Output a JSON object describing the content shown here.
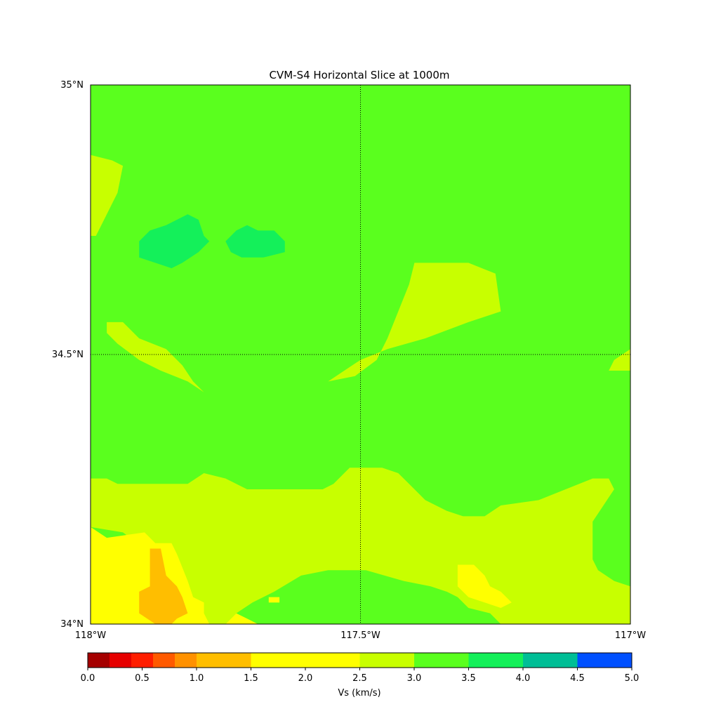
{
  "chart_data": {
    "type": "heatmap",
    "title": "CVM-S4 Horizontal Slice at 1000m",
    "x_ticks": [
      "118°W",
      "117.5°W",
      "117°W"
    ],
    "y_ticks": [
      "35°N",
      "34.5°N",
      "34°N"
    ],
    "xlim": [
      -118,
      -117
    ],
    "ylim": [
      34,
      35
    ],
    "gridlines": {
      "lon": [
        -117.5
      ],
      "lat": [
        34.5
      ],
      "style": "dotted"
    },
    "background_vs": 3.25,
    "colorbar": {
      "label": "Vs (km/s)",
      "ticks": [
        "0.0",
        "0.5",
        "1.0",
        "1.5",
        "2.0",
        "2.5",
        "3.0",
        "3.5",
        "4.0",
        "4.5",
        "5.0"
      ],
      "range": [
        0,
        5
      ],
      "bins": [
        {
          "from": 0.0,
          "to": 0.2,
          "color": "#a50000"
        },
        {
          "from": 0.2,
          "to": 0.4,
          "color": "#e60000"
        },
        {
          "from": 0.4,
          "to": 0.6,
          "color": "#ff1e00"
        },
        {
          "from": 0.6,
          "to": 0.8,
          "color": "#ff5a00"
        },
        {
          "from": 0.8,
          "to": 1.0,
          "color": "#ff9100"
        },
        {
          "from": 1.0,
          "to": 1.5,
          "color": "#ffbe00"
        },
        {
          "from": 1.5,
          "to": 2.5,
          "color": "#ffff00"
        },
        {
          "from": 2.5,
          "to": 3.0,
          "color": "#c8ff00"
        },
        {
          "from": 3.0,
          "to": 3.5,
          "color": "#5aff1e"
        },
        {
          "from": 3.5,
          "to": 4.0,
          "color": "#14f05a"
        },
        {
          "from": 4.0,
          "to": 4.5,
          "color": "#00be96"
        },
        {
          "from": 4.5,
          "to": 5.0,
          "color": "#0050ff"
        }
      ]
    },
    "regions": [
      {
        "vs": 2.75,
        "points": [
          [
            -118,
            34.87
          ],
          [
            -117.96,
            34.86
          ],
          [
            -117.94,
            34.85
          ],
          [
            -117.95,
            34.8
          ],
          [
            -117.97,
            34.76
          ],
          [
            -117.99,
            34.72
          ],
          [
            -118,
            34.72
          ]
        ]
      },
      {
        "vs": 3.75,
        "points": [
          [
            -117.91,
            34.71
          ],
          [
            -117.89,
            34.73
          ],
          [
            -117.86,
            34.74
          ],
          [
            -117.82,
            34.76
          ],
          [
            -117.8,
            34.75
          ],
          [
            -117.79,
            34.72
          ],
          [
            -117.78,
            34.71
          ],
          [
            -117.8,
            34.69
          ],
          [
            -117.83,
            34.67
          ],
          [
            -117.85,
            34.66
          ],
          [
            -117.88,
            34.67
          ],
          [
            -117.91,
            34.68
          ]
        ]
      },
      {
        "vs": 3.75,
        "points": [
          [
            -117.75,
            34.71
          ],
          [
            -117.73,
            34.73
          ],
          [
            -117.71,
            34.74
          ],
          [
            -117.69,
            34.73
          ],
          [
            -117.66,
            34.73
          ],
          [
            -117.64,
            34.71
          ],
          [
            -117.64,
            34.69
          ],
          [
            -117.68,
            34.68
          ],
          [
            -117.72,
            34.68
          ],
          [
            -117.74,
            34.69
          ]
        ]
      },
      {
        "vs": 2.75,
        "points": [
          [
            -117.97,
            34.56
          ],
          [
            -117.94,
            34.56
          ],
          [
            -117.91,
            34.53
          ],
          [
            -117.86,
            34.51
          ],
          [
            -117.83,
            34.48
          ],
          [
            -117.81,
            34.45
          ],
          [
            -117.79,
            34.43
          ],
          [
            -117.82,
            34.45
          ],
          [
            -117.87,
            34.47
          ],
          [
            -117.91,
            34.49
          ],
          [
            -117.95,
            34.52
          ],
          [
            -117.97,
            34.54
          ]
        ]
      },
      {
        "vs": 2.75,
        "points": [
          [
            -117.4,
            34.67
          ],
          [
            -117.3,
            34.67
          ],
          [
            -117.25,
            34.65
          ],
          [
            -117.24,
            34.58
          ],
          [
            -117.3,
            34.56
          ],
          [
            -117.38,
            34.53
          ],
          [
            -117.45,
            34.51
          ],
          [
            -117.5,
            34.49
          ],
          [
            -117.53,
            34.47
          ],
          [
            -117.56,
            34.45
          ],
          [
            -117.51,
            34.46
          ],
          [
            -117.47,
            34.49
          ],
          [
            -117.45,
            34.53
          ],
          [
            -117.43,
            34.58
          ],
          [
            -117.41,
            34.63
          ]
        ]
      },
      {
        "vs": 2.75,
        "points": [
          [
            -117.0,
            34.51
          ],
          [
            -117.03,
            34.49
          ],
          [
            -117.04,
            34.47
          ],
          [
            -117.0,
            34.47
          ]
        ]
      },
      {
        "vs": 2.75,
        "points": [
          [
            -118,
            34.27
          ],
          [
            -117.97,
            34.27
          ],
          [
            -117.95,
            34.26
          ],
          [
            -117.82,
            34.26
          ],
          [
            -117.79,
            34.28
          ],
          [
            -117.75,
            34.27
          ],
          [
            -117.71,
            34.25
          ],
          [
            -117.66,
            34.25
          ],
          [
            -117.61,
            34.25
          ],
          [
            -117.57,
            34.25
          ],
          [
            -117.55,
            34.26
          ],
          [
            -117.52,
            34.29
          ],
          [
            -117.46,
            34.29
          ],
          [
            -117.43,
            34.28
          ],
          [
            -117.41,
            34.26
          ],
          [
            -117.38,
            34.23
          ],
          [
            -117.34,
            34.21
          ],
          [
            -117.31,
            34.2
          ],
          [
            -117.27,
            34.2
          ],
          [
            -117.24,
            34.22
          ],
          [
            -117.17,
            34.23
          ],
          [
            -117.12,
            34.25
          ],
          [
            -117.07,
            34.27
          ],
          [
            -117.04,
            34.27
          ],
          [
            -117.03,
            34.25
          ],
          [
            -117.05,
            34.22
          ],
          [
            -117.07,
            34.19
          ],
          [
            -117.07,
            34.12
          ],
          [
            -117.06,
            34.1
          ],
          [
            -117.03,
            34.08
          ],
          [
            -117.0,
            34.07
          ],
          [
            -117,
            34
          ],
          [
            -117.24,
            34
          ],
          [
            -117.26,
            34.02
          ],
          [
            -117.3,
            34.03
          ],
          [
            -117.32,
            34.05
          ],
          [
            -117.34,
            34.06
          ],
          [
            -117.37,
            34.07
          ],
          [
            -117.42,
            34.08
          ],
          [
            -117.49,
            34.1
          ],
          [
            -117.56,
            34.1
          ],
          [
            -117.61,
            34.09
          ],
          [
            -117.66,
            34.06
          ],
          [
            -117.7,
            34.04
          ],
          [
            -117.73,
            34.02
          ],
          [
            -117.75,
            34.0
          ],
          [
            -117.84,
            34
          ],
          [
            -117.85,
            34.03
          ],
          [
            -117.87,
            34.09
          ],
          [
            -117.9,
            34.14
          ],
          [
            -117.94,
            34.17
          ],
          [
            -118,
            34.18
          ]
        ]
      },
      {
        "vs": 2.0,
        "points": [
          [
            -118,
            34.18
          ],
          [
            -117.97,
            34.16
          ],
          [
            -117.9,
            34.17
          ],
          [
            -117.88,
            34.15
          ],
          [
            -117.85,
            34.15
          ],
          [
            -117.84,
            34.13
          ],
          [
            -117.82,
            34.08
          ],
          [
            -117.81,
            34.05
          ],
          [
            -117.79,
            34.04
          ],
          [
            -117.79,
            34.02
          ],
          [
            -117.78,
            34.0
          ],
          [
            -117.8,
            34.0
          ],
          [
            -117.84,
            34.0
          ],
          [
            -118,
            34
          ]
        ]
      },
      {
        "vs": 1.25,
        "points": [
          [
            -117.89,
            34.14
          ],
          [
            -117.87,
            34.14
          ],
          [
            -117.86,
            34.09
          ],
          [
            -117.84,
            34.07
          ],
          [
            -117.83,
            34.05
          ],
          [
            -117.82,
            34.02
          ],
          [
            -117.84,
            34.01
          ],
          [
            -117.85,
            34.0
          ],
          [
            -117.88,
            34.0
          ],
          [
            -117.91,
            34.02
          ],
          [
            -117.91,
            34.06
          ],
          [
            -117.89,
            34.07
          ]
        ]
      },
      {
        "vs": 2.0,
        "points": [
          [
            -117.73,
            34.02
          ],
          [
            -117.71,
            34.01
          ],
          [
            -117.69,
            34.0
          ],
          [
            -117.75,
            34.0
          ]
        ]
      },
      {
        "vs": 2.0,
        "points": [
          [
            -117.67,
            34.05
          ],
          [
            -117.65,
            34.05
          ],
          [
            -117.65,
            34.04
          ],
          [
            -117.67,
            34.04
          ]
        ]
      },
      {
        "vs": 2.0,
        "points": [
          [
            -117.32,
            34.11
          ],
          [
            -117.29,
            34.11
          ],
          [
            -117.27,
            34.09
          ],
          [
            -117.26,
            34.07
          ],
          [
            -117.24,
            34.06
          ],
          [
            -117.22,
            34.04
          ],
          [
            -117.24,
            34.03
          ],
          [
            -117.27,
            34.04
          ],
          [
            -117.3,
            34.05
          ],
          [
            -117.32,
            34.07
          ]
        ]
      }
    ]
  }
}
